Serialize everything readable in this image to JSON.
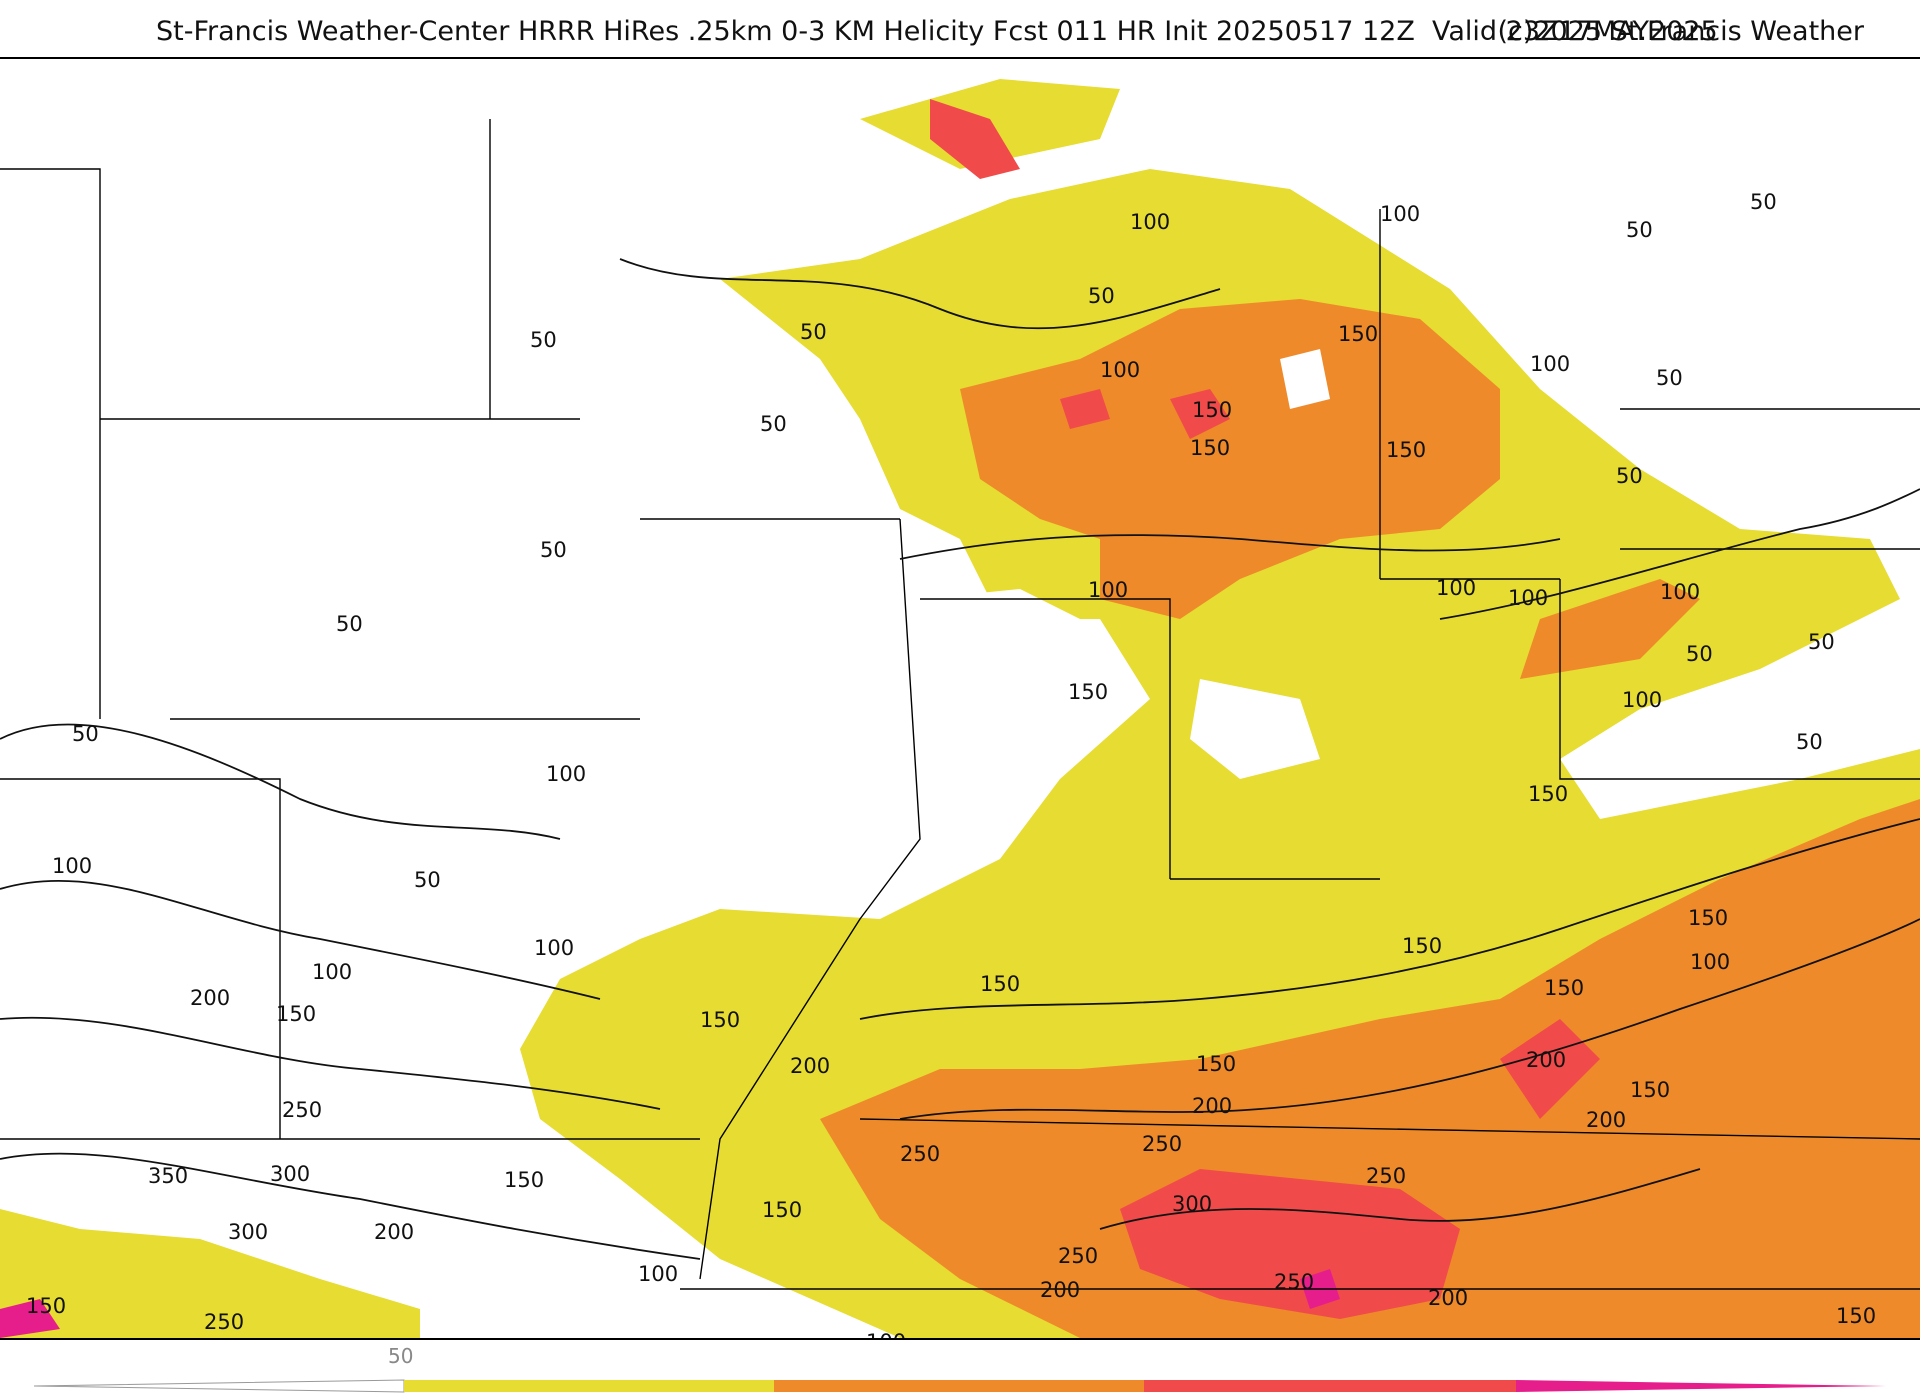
{
  "header": {
    "title": "St-Francis Weather-Center HRRR HiRes .25km 0-3 KM Helicity Fcst 011 HR Init 20250517 12Z  Valid 23Z17MAY2025",
    "copyright": "(c)2025 St.Francis Weather"
  },
  "map": {
    "field": "0-3 KM Helicity",
    "model": "HRRR",
    "fill_colors": {
      "yellow": "#e6dc32",
      "orange": "#ee8a2a",
      "red": "#f04a4a",
      "magenta": "#e61e8c"
    },
    "contour_labels": [
      "50",
      "100",
      "150",
      "200",
      "250",
      "300",
      "350"
    ]
  },
  "colorbar": {
    "tick_labels": [
      "50"
    ],
    "bins": [
      {
        "from": 50,
        "color": "#e6dc32"
      },
      {
        "from": 100,
        "color": "#ee8a2a"
      },
      {
        "from": 150,
        "color": "#f04a4a"
      },
      {
        "from": 200,
        "color": "#e61e8c"
      }
    ]
  }
}
